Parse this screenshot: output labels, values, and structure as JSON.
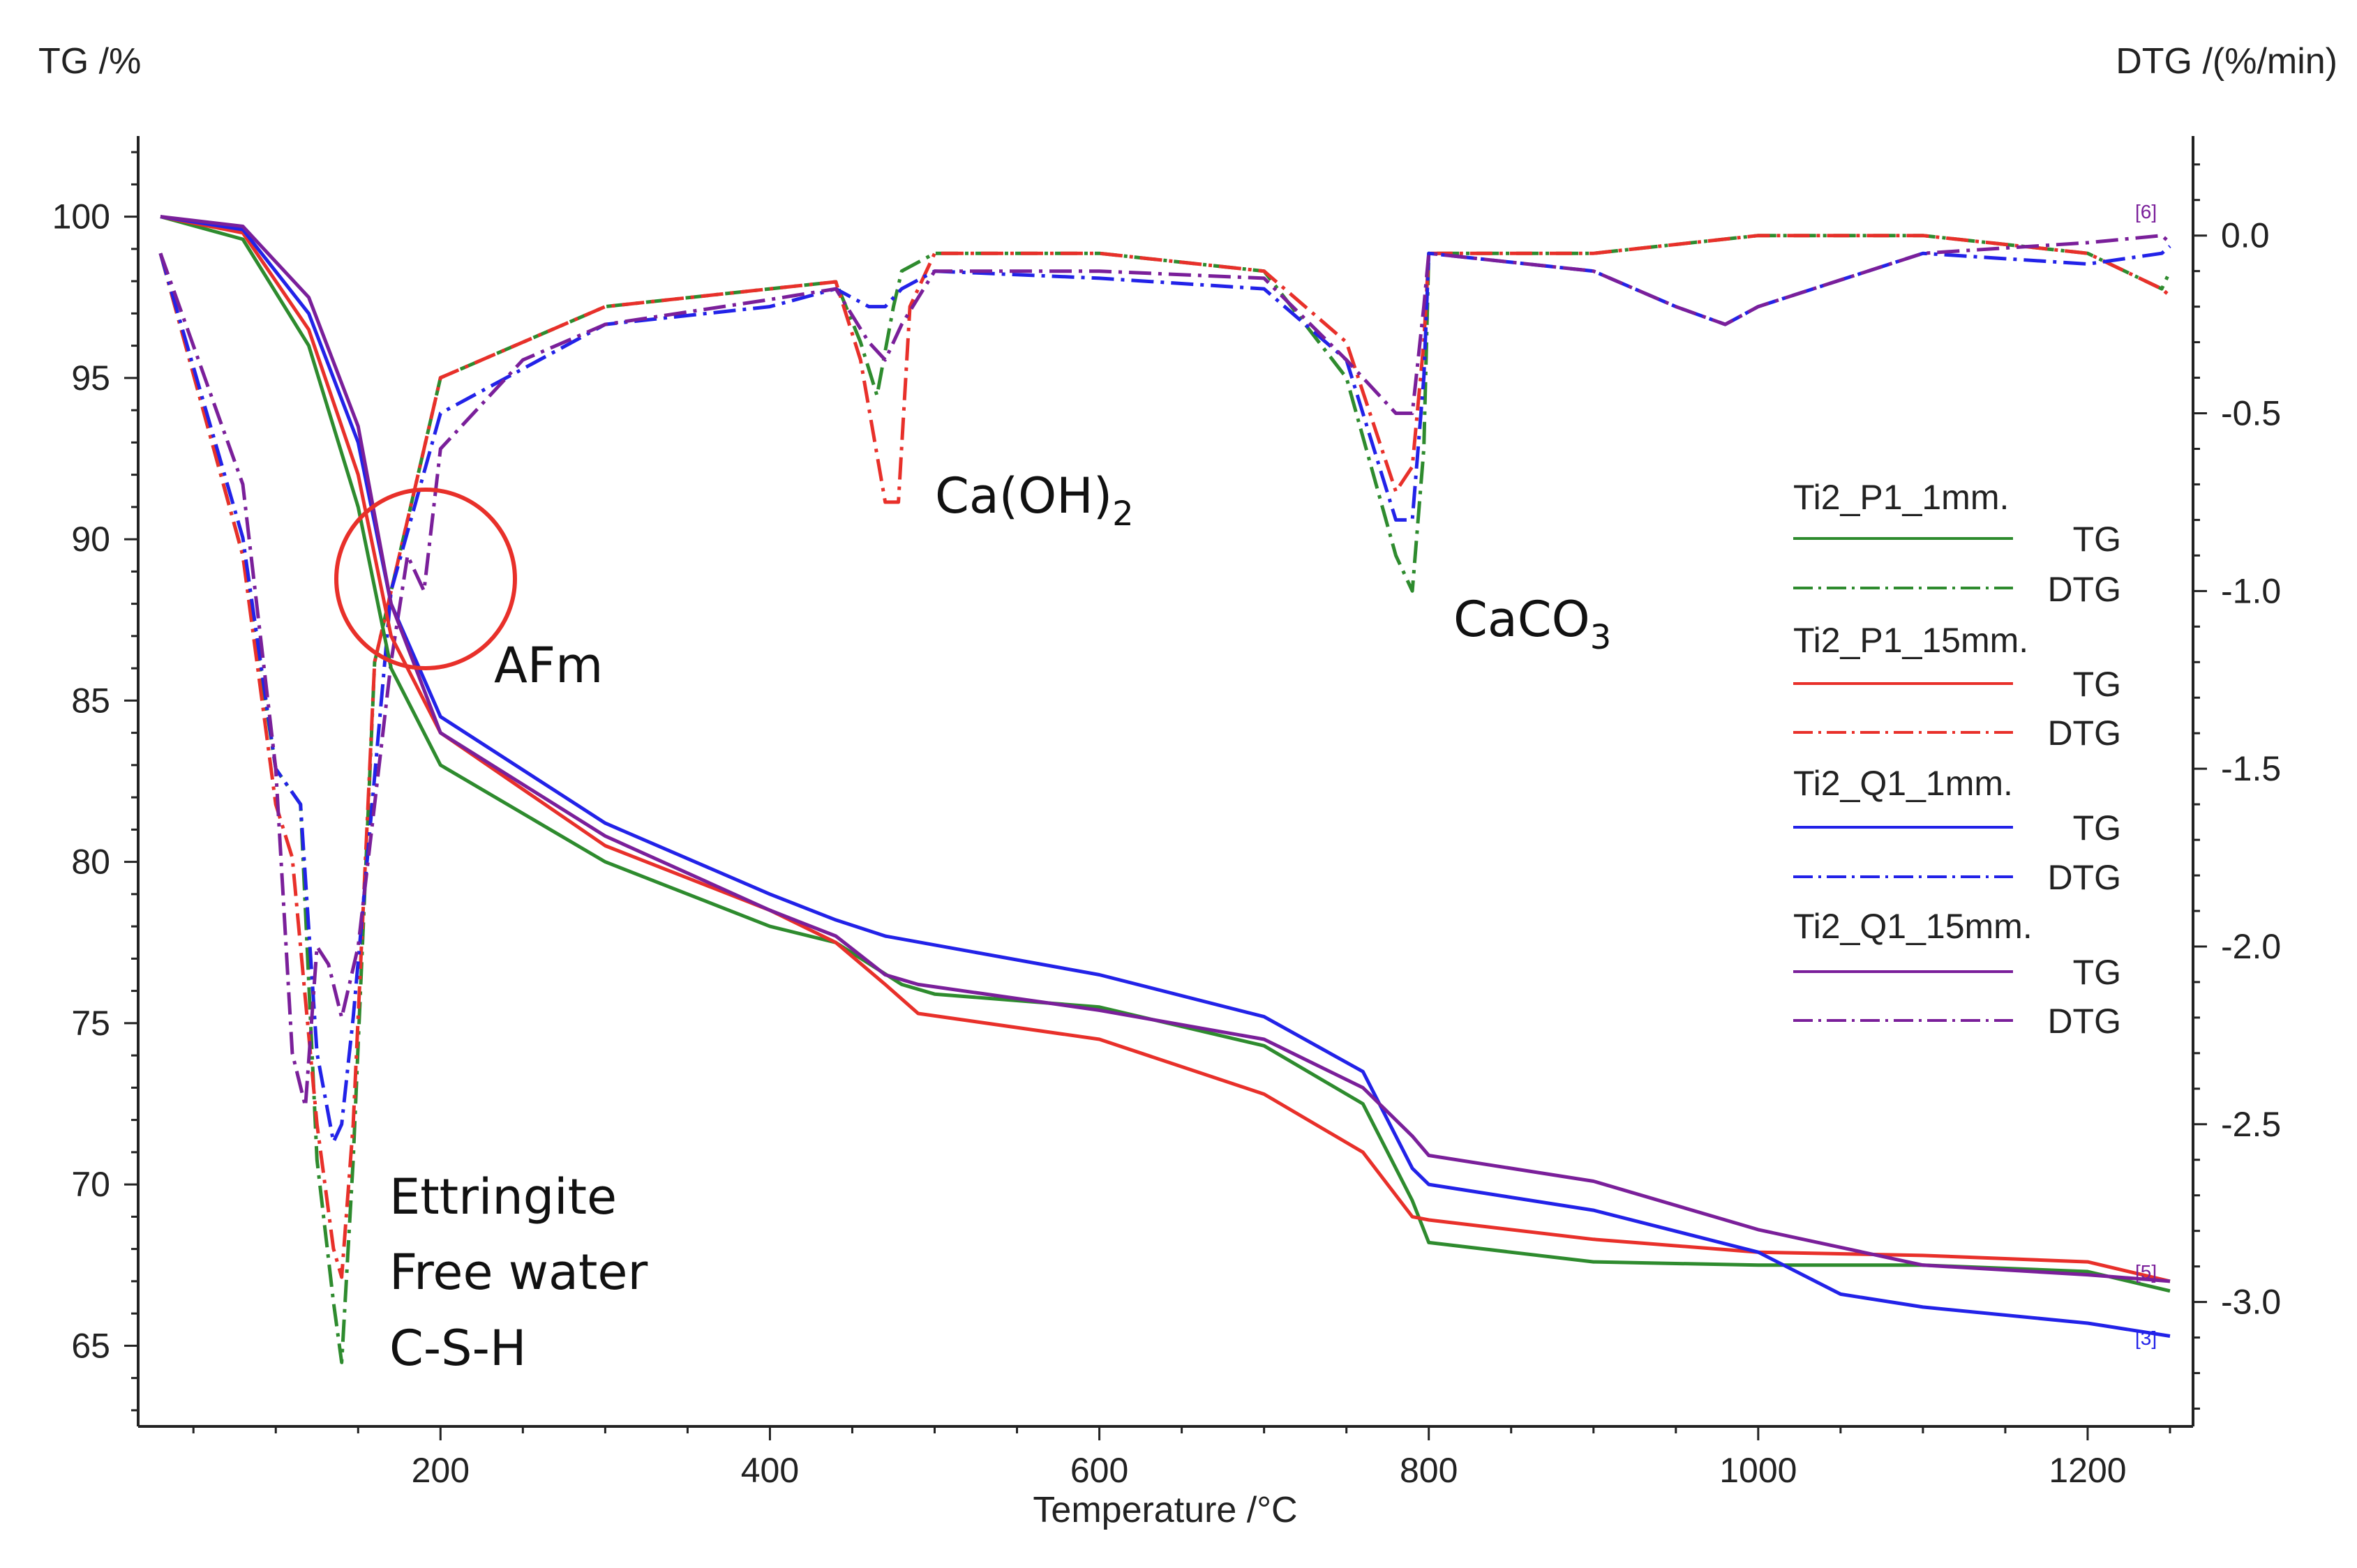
{
  "chart_data": {
    "type": "line",
    "xlabel": "Temperature /°C",
    "ylabel_left": "TG /%",
    "ylabel_right": "DTG /(%/min)",
    "xlim": [
      30,
      1250
    ],
    "ylim_left": [
      62.5,
      102.5
    ],
    "ylim_right": [
      -3.35,
      0.28
    ],
    "x_ticks": [
      200,
      400,
      600,
      800,
      1000,
      1200
    ],
    "y_left_ticks": [
      65,
      70,
      75,
      80,
      85,
      90,
      95,
      100
    ],
    "y_right_ticks": [
      -3.0,
      -2.5,
      -2.0,
      -1.5,
      -1.0,
      -0.5,
      0.0
    ],
    "y_right_tick_labels": [
      "-3.0",
      "-2.5",
      "-2.0",
      "-1.5",
      "-1.0",
      "-0.5",
      "0.0"
    ],
    "series": [
      {
        "name": "Ti2_P1_1mm.",
        "color": "#2e8b2e",
        "tg_label": "TG",
        "dtg_label": "DTG",
        "tg": [
          [
            30,
            100
          ],
          [
            80,
            99.3
          ],
          [
            120,
            96
          ],
          [
            150,
            91
          ],
          [
            170,
            86
          ],
          [
            200,
            83
          ],
          [
            300,
            80
          ],
          [
            400,
            78
          ],
          [
            440,
            77.5
          ],
          [
            480,
            76.2
          ],
          [
            500,
            75.9
          ],
          [
            600,
            75.5
          ],
          [
            700,
            74.3
          ],
          [
            760,
            72.5
          ],
          [
            790,
            69.5
          ],
          [
            800,
            68.2
          ],
          [
            900,
            67.6
          ],
          [
            1000,
            67.5
          ],
          [
            1100,
            67.5
          ],
          [
            1200,
            67.3
          ],
          [
            1250,
            66.7
          ]
        ],
        "dtg": [
          [
            30,
            -0.05
          ],
          [
            80,
            -0.9
          ],
          [
            100,
            -1.5
          ],
          [
            115,
            -1.6
          ],
          [
            125,
            -2.6
          ],
          [
            135,
            -3.0
          ],
          [
            140,
            -3.17
          ],
          [
            147,
            -2.6
          ],
          [
            160,
            -1.2
          ],
          [
            200,
            -0.4
          ],
          [
            300,
            -0.2
          ],
          [
            400,
            -0.15
          ],
          [
            440,
            -0.13
          ],
          [
            455,
            -0.3
          ],
          [
            465,
            -0.45
          ],
          [
            475,
            -0.2
          ],
          [
            480,
            -0.1
          ],
          [
            500,
            -0.05
          ],
          [
            600,
            -0.05
          ],
          [
            700,
            -0.1
          ],
          [
            750,
            -0.4
          ],
          [
            780,
            -0.9
          ],
          [
            790,
            -1.0
          ],
          [
            797,
            -0.6
          ],
          [
            800,
            -0.05
          ],
          [
            900,
            -0.05
          ],
          [
            1000,
            0.0
          ],
          [
            1100,
            0.0
          ],
          [
            1200,
            -0.05
          ],
          [
            1245,
            -0.15
          ],
          [
            1250,
            -0.1
          ]
        ]
      },
      {
        "name": "Ti2_P1_15mm.",
        "color": "#e8302a",
        "tg_label": "TG",
        "dtg_label": "DTG",
        "tg": [
          [
            30,
            100
          ],
          [
            80,
            99.5
          ],
          [
            120,
            96.5
          ],
          [
            150,
            92
          ],
          [
            170,
            87
          ],
          [
            200,
            84
          ],
          [
            300,
            80.5
          ],
          [
            400,
            78.5
          ],
          [
            440,
            77.5
          ],
          [
            470,
            76.2
          ],
          [
            490,
            75.3
          ],
          [
            600,
            74.5
          ],
          [
            700,
            72.8
          ],
          [
            760,
            71
          ],
          [
            790,
            69
          ],
          [
            800,
            68.9
          ],
          [
            900,
            68.3
          ],
          [
            1000,
            67.9
          ],
          [
            1100,
            67.8
          ],
          [
            1200,
            67.6
          ],
          [
            1250,
            67.0
          ]
        ],
        "dtg": [
          [
            30,
            -0.05
          ],
          [
            80,
            -0.9
          ],
          [
            100,
            -1.6
          ],
          [
            110,
            -1.75
          ],
          [
            125,
            -2.5
          ],
          [
            135,
            -2.85
          ],
          [
            140,
            -2.93
          ],
          [
            147,
            -2.5
          ],
          [
            160,
            -1.2
          ],
          [
            200,
            -0.4
          ],
          [
            300,
            -0.2
          ],
          [
            400,
            -0.15
          ],
          [
            440,
            -0.13
          ],
          [
            455,
            -0.35
          ],
          [
            470,
            -0.75
          ],
          [
            478,
            -0.75
          ],
          [
            485,
            -0.2
          ],
          [
            500,
            -0.05
          ],
          [
            600,
            -0.05
          ],
          [
            700,
            -0.1
          ],
          [
            750,
            -0.3
          ],
          [
            780,
            -0.72
          ],
          [
            790,
            -0.65
          ],
          [
            797,
            -0.3
          ],
          [
            800,
            -0.05
          ],
          [
            900,
            -0.05
          ],
          [
            1000,
            0.0
          ],
          [
            1100,
            0.0
          ],
          [
            1200,
            -0.05
          ],
          [
            1245,
            -0.15
          ],
          [
            1250,
            -0.17
          ]
        ]
      },
      {
        "name": "Ti2_Q1_1mm.",
        "color": "#2222e8",
        "tg_label": "TG",
        "dtg_label": "DTG",
        "tg": [
          [
            30,
            100
          ],
          [
            80,
            99.6
          ],
          [
            120,
            97
          ],
          [
            150,
            93
          ],
          [
            170,
            88
          ],
          [
            200,
            84.5
          ],
          [
            300,
            81.2
          ],
          [
            400,
            79
          ],
          [
            440,
            78.2
          ],
          [
            470,
            77.7
          ],
          [
            600,
            76.5
          ],
          [
            700,
            75.2
          ],
          [
            760,
            73.5
          ],
          [
            790,
            70.5
          ],
          [
            800,
            70.0
          ],
          [
            900,
            69.2
          ],
          [
            1000,
            67.9
          ],
          [
            1050,
            66.6
          ],
          [
            1100,
            66.2
          ],
          [
            1200,
            65.7
          ],
          [
            1250,
            65.3
          ]
        ],
        "dtg": [
          [
            30,
            -0.05
          ],
          [
            80,
            -0.85
          ],
          [
            100,
            -1.5
          ],
          [
            115,
            -1.6
          ],
          [
            125,
            -2.3
          ],
          [
            135,
            -2.55
          ],
          [
            140,
            -2.5
          ],
          [
            147,
            -2.2
          ],
          [
            170,
            -1.0
          ],
          [
            200,
            -0.5
          ],
          [
            300,
            -0.25
          ],
          [
            400,
            -0.2
          ],
          [
            440,
            -0.15
          ],
          [
            460,
            -0.2
          ],
          [
            470,
            -0.2
          ],
          [
            480,
            -0.15
          ],
          [
            500,
            -0.1
          ],
          [
            600,
            -0.12
          ],
          [
            700,
            -0.15
          ],
          [
            750,
            -0.35
          ],
          [
            780,
            -0.8
          ],
          [
            790,
            -0.8
          ],
          [
            797,
            -0.4
          ],
          [
            800,
            -0.05
          ],
          [
            900,
            -0.1
          ],
          [
            950,
            -0.2
          ],
          [
            980,
            -0.25
          ],
          [
            1000,
            -0.2
          ],
          [
            1100,
            -0.05
          ],
          [
            1200,
            -0.08
          ],
          [
            1245,
            -0.05
          ],
          [
            1250,
            -0.03
          ]
        ]
      },
      {
        "name": "Ti2_Q1_15mm.",
        "color": "#7a1f9a",
        "tg_label": "TG",
        "dtg_label": "DTG",
        "tg": [
          [
            30,
            100
          ],
          [
            80,
            99.7
          ],
          [
            120,
            97.5
          ],
          [
            150,
            93.5
          ],
          [
            170,
            88
          ],
          [
            200,
            84
          ],
          [
            300,
            80.8
          ],
          [
            400,
            78.5
          ],
          [
            440,
            77.7
          ],
          [
            470,
            76.5
          ],
          [
            490,
            76.2
          ],
          [
            600,
            75.4
          ],
          [
            700,
            74.5
          ],
          [
            760,
            73
          ],
          [
            790,
            71.5
          ],
          [
            800,
            70.9
          ],
          [
            900,
            70.1
          ],
          [
            1000,
            68.6
          ],
          [
            1100,
            67.5
          ],
          [
            1200,
            67.2
          ],
          [
            1250,
            67.0
          ]
        ],
        "dtg": [
          [
            30,
            -0.05
          ],
          [
            80,
            -0.7
          ],
          [
            100,
            -1.5
          ],
          [
            110,
            -2.3
          ],
          [
            118,
            -2.45
          ],
          [
            125,
            -2.0
          ],
          [
            132,
            -2.05
          ],
          [
            140,
            -2.2
          ],
          [
            150,
            -2.0
          ],
          [
            170,
            -1.2
          ],
          [
            180,
            -0.9
          ],
          [
            190,
            -1.0
          ],
          [
            200,
            -0.6
          ],
          [
            250,
            -0.35
          ],
          [
            300,
            -0.25
          ],
          [
            400,
            -0.18
          ],
          [
            440,
            -0.15
          ],
          [
            460,
            -0.3
          ],
          [
            470,
            -0.35
          ],
          [
            480,
            -0.25
          ],
          [
            500,
            -0.1
          ],
          [
            600,
            -0.1
          ],
          [
            700,
            -0.12
          ],
          [
            750,
            -0.35
          ],
          [
            780,
            -0.5
          ],
          [
            790,
            -0.5
          ],
          [
            797,
            -0.2
          ],
          [
            800,
            -0.05
          ],
          [
            900,
            -0.1
          ],
          [
            950,
            -0.2
          ],
          [
            980,
            -0.25
          ],
          [
            1000,
            -0.2
          ],
          [
            1100,
            -0.05
          ],
          [
            1200,
            -0.02
          ],
          [
            1245,
            0.0
          ],
          [
            1250,
            -0.02
          ]
        ]
      }
    ],
    "annotations": {
      "ettringite": "Ettringite",
      "free_water": "Free water",
      "csh": "C-S-H",
      "afm": "AFm",
      "caoh2_base": "Ca(OH)",
      "caoh2_sub": "2",
      "caco3_base": "CaCO",
      "caco3_sub": "3"
    },
    "curve_tags": {
      "tg_blue": "[3]",
      "tg_purple": "[5]",
      "dtg_purple": "[6]"
    }
  }
}
